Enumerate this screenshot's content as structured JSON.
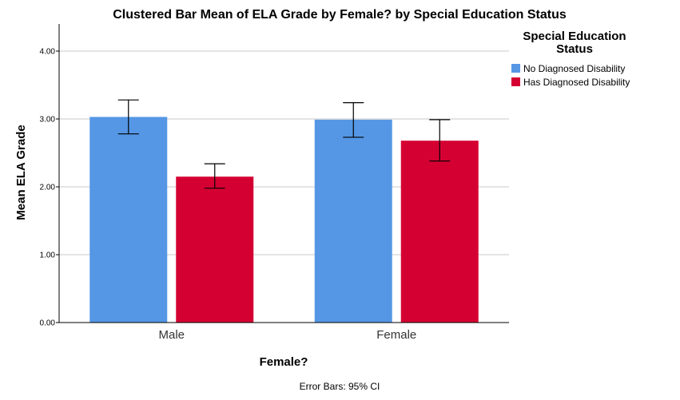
{
  "chart_data": {
    "type": "bar",
    "title": "Clustered Bar Mean of ELA Grade by Female? by Special Education Status",
    "xlabel": "Female?",
    "ylabel": "Mean ELA Grade",
    "categories": [
      "Male",
      "Female"
    ],
    "series": [
      {
        "name": "No Diagnosed Disability",
        "color": "#5597e5",
        "values": [
          3.03,
          2.99
        ],
        "ci_low": [
          2.78,
          2.73
        ],
        "ci_high": [
          3.28,
          3.24
        ]
      },
      {
        "name": "Has Diagnosed Disability",
        "color": "#d50032",
        "values": [
          2.15,
          2.68
        ],
        "ci_low": [
          1.98,
          2.38
        ],
        "ci_high": [
          2.34,
          2.99
        ]
      }
    ],
    "ylim": [
      0,
      4.4
    ],
    "yticks": [
      "0.00",
      "1.00",
      "2.00",
      "3.00",
      "4.00"
    ],
    "grid": true,
    "legend": {
      "title_lines": [
        "Special Education",
        "Status"
      ],
      "position": "top-right"
    },
    "footnote": "Error Bars: 95% CI"
  }
}
